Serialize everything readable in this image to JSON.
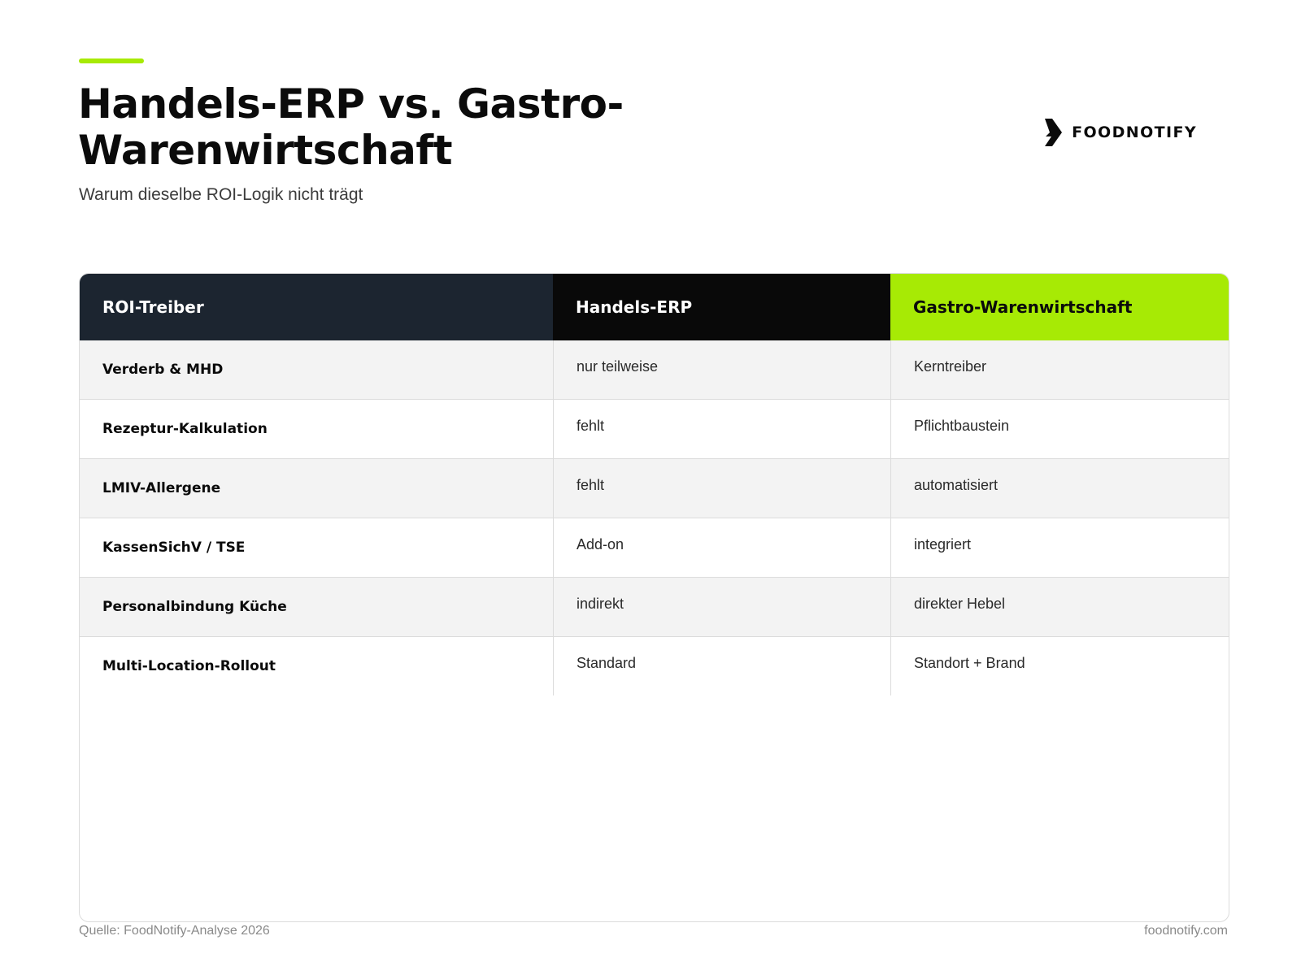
{
  "brand": {
    "name": "FOODNOTIFY",
    "accent_color": "#a7ea05",
    "logo_icon": "foodnotify-chevron-icon"
  },
  "header": {
    "title": "Handels-ERP vs. Gastro-Warenwirtschaft",
    "subtitle": "Warum dieselbe ROI-Logik nicht trägt"
  },
  "table": {
    "columns": [
      "ROI-Treiber",
      "Handels-ERP",
      "Gastro-Warenwirtschaft"
    ],
    "rows": [
      {
        "driver": "Verderb & MHD",
        "retail": "nur teilweise",
        "gastro": "Kerntreiber"
      },
      {
        "driver": "Rezeptur-Kalkulation",
        "retail": "fehlt",
        "gastro": "Pflichtbaustein"
      },
      {
        "driver": "LMIV-Allergene",
        "retail": "fehlt",
        "gastro": "automatisiert"
      },
      {
        "driver": "KassenSichV / TSE",
        "retail": "Add-on",
        "gastro": "integriert"
      },
      {
        "driver": "Personalbindung Küche",
        "retail": "indirekt",
        "gastro": "direkter Hebel"
      },
      {
        "driver": "Multi-Location-Rollout",
        "retail": "Standard",
        "gastro": "Standort + Brand"
      }
    ]
  },
  "footer": {
    "source": "Quelle: FoodNotify-Analyse 2026",
    "website": "foodnotify.com"
  }
}
